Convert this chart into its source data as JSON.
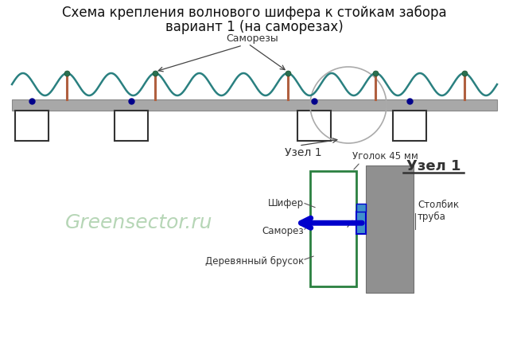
{
  "title_line1": "Схема крепления волнового шифера к стойкам забора",
  "title_line2": "вариант 1 (на саморезах)",
  "bg_color": "#ffffff",
  "wave_color": "#2a8080",
  "beam_facecolor": "#a8a8a8",
  "beam_edgecolor": "#888888",
  "screw_color": "#b06040",
  "dot_color": "#00008b",
  "green_label": "Greensector.ru",
  "green_label_color": "#90c090",
  "label_samorezi": "Саморезы",
  "label_uzel1": "Узел 1",
  "label_uzel1_title": "Узел 1",
  "label_uголок": "Уголок 45 мм",
  "label_shifer": "Шифер",
  "label_samorez_detail": "Саморез",
  "label_brusok": "Деревянный брусок",
  "label_stolbik": "Столбик\nтруба",
  "node_border_color": "#2a8040",
  "node_blue_color": "#0000cc",
  "node_lightblue_color": "#4090cc",
  "arrow_color": "#444444",
  "line_color": "#555555"
}
